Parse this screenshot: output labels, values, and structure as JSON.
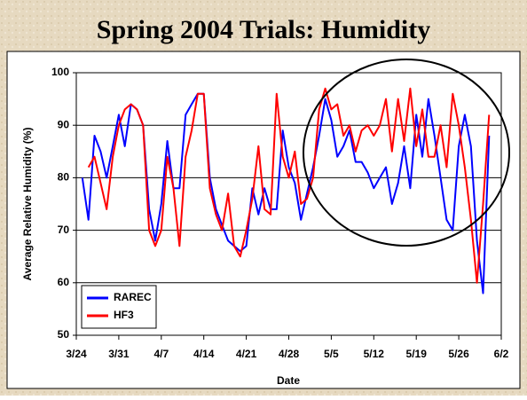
{
  "chart_data": {
    "type": "line",
    "title": "Spring 2004 Trials: Humidity",
    "xlabel": "Date",
    "ylabel": "Average Relative Humidity (%)",
    "x": [
      "3/25",
      "3/26",
      "3/27",
      "3/28",
      "3/29",
      "3/30",
      "3/31",
      "4/1",
      "4/2",
      "4/3",
      "4/4",
      "4/5",
      "4/6",
      "4/7",
      "4/8",
      "4/9",
      "4/10",
      "4/11",
      "4/12",
      "4/13",
      "4/14",
      "4/15",
      "4/16",
      "4/17",
      "4/18",
      "4/19",
      "4/20",
      "4/21",
      "4/22",
      "4/23",
      "4/24",
      "4/25",
      "4/26",
      "4/27",
      "4/28",
      "4/29",
      "4/30",
      "5/1",
      "5/2",
      "5/3",
      "5/4",
      "5/5",
      "5/6",
      "5/7",
      "5/8",
      "5/9",
      "5/10",
      "5/11",
      "5/12",
      "5/13",
      "5/14",
      "5/15",
      "5/16",
      "5/17",
      "5/18",
      "5/19",
      "5/20",
      "5/21",
      "5/22",
      "5/23",
      "5/24",
      "5/25",
      "5/26",
      "5/27",
      "5/28",
      "5/29",
      "5/30",
      "5/31"
    ],
    "series": [
      {
        "name": "RAREC",
        "color": "#0000ff",
        "values": [
          80,
          72,
          88,
          85,
          80,
          86,
          92,
          86,
          94,
          93,
          90,
          74,
          68,
          75,
          87,
          78,
          78,
          92,
          94,
          96,
          96,
          80,
          74,
          71,
          68,
          67,
          66,
          67,
          78,
          73,
          78,
          74,
          74,
          89,
          82,
          79,
          72,
          77,
          82,
          88,
          95,
          91,
          84,
          86,
          89,
          83,
          83,
          81,
          78,
          80,
          82,
          75,
          79,
          86,
          78,
          92,
          84,
          95,
          88,
          80,
          72,
          70,
          86,
          92,
          86,
          68,
          58,
          88
        ]
      },
      {
        "name": "HF3",
        "color": "#ff0000",
        "values": [
          null,
          82,
          84,
          79,
          74,
          84,
          90,
          93,
          94,
          93,
          90,
          70,
          67,
          70,
          84,
          78,
          67,
          84,
          89,
          96,
          96,
          78,
          73,
          70,
          77,
          67,
          65,
          70,
          76,
          86,
          74,
          73,
          96,
          84,
          80,
          85,
          75,
          76,
          80,
          93,
          97,
          93,
          94,
          88,
          90,
          85,
          89,
          90,
          88,
          90,
          95,
          85,
          95,
          87,
          97,
          86,
          93,
          84,
          84,
          90,
          82,
          96,
          90,
          82,
          72,
          60,
          75,
          92
        ]
      }
    ],
    "xlim": [
      "3/24",
      "6/2"
    ],
    "xticks": [
      "3/24",
      "3/31",
      "4/7",
      "4/14",
      "4/21",
      "4/28",
      "5/5",
      "5/12",
      "5/19",
      "5/26",
      "6/2"
    ],
    "ylim": [
      50,
      100
    ],
    "yticks": [
      50,
      60,
      70,
      80,
      90,
      100
    ],
    "grid": true,
    "legend": "lower left"
  }
}
